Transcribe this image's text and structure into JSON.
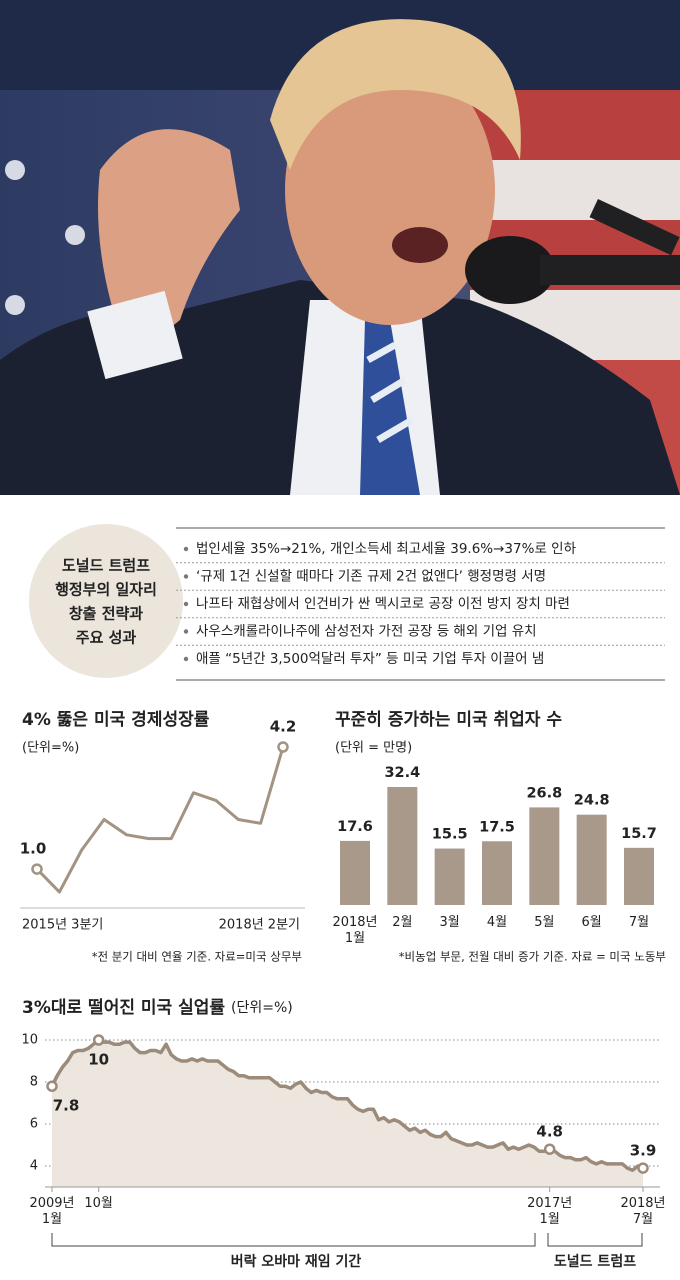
{
  "summary": {
    "title_lines": [
      "도널드 트럼프",
      "행정부의 일자리",
      "창출 전략과",
      "주요 성과"
    ],
    "items": [
      "법인세율 35%→21%, 개인소득세 최고세율 39.6%→37%로 인하",
      "‘규제 1건 신설할 때마다 기존 규제 2건 없앤다’ 행정명령 서명",
      "나프타 재협상에서 인건비가 싼 멕시코로 공장 이전 방지 장치 마련",
      "사우스캐롤라이나주에 삼성전자 가전 공장 등 해외 기업 유치",
      "애플 “5년간 3,500억달러 투자” 등 미국 기업 투자 이끌어 냄"
    ]
  },
  "chart_data": [
    {
      "type": "line",
      "title": "4% 뚫은 미국 경제성장률",
      "subtitle": "(단위=%)",
      "categories": [
        "2015년 3분기",
        null,
        null,
        null,
        null,
        null,
        null,
        null,
        null,
        null,
        null,
        "2018년 2분기"
      ],
      "values": [
        1.0,
        0.4,
        1.5,
        2.3,
        1.9,
        1.8,
        1.8,
        3.0,
        2.8,
        2.3,
        2.2,
        4.2
      ],
      "value_labels": [
        "1.0",
        null,
        null,
        null,
        null,
        null,
        null,
        null,
        null,
        null,
        null,
        "4.2"
      ],
      "color": "#a39382",
      "note": "*전 분기 대비 연율 기준. 자료=미국 상무부"
    },
    {
      "type": "bar",
      "title": "꾸준히 증가하는 미국 취업자 수",
      "subtitle": "(단위 = 만명)",
      "categories": [
        "2018년 1월",
        "2월",
        "3월",
        "4월",
        "5월",
        "6월",
        "7월"
      ],
      "values": [
        17.6,
        32.4,
        15.5,
        17.5,
        26.8,
        24.8,
        15.7
      ],
      "color": "#a8998a",
      "note": "*비농업 부문, 전월 대비 증가 기준. 자료 = 미국 노동부"
    },
    {
      "type": "area",
      "title": "3%대로 떨어진 미국 실업률",
      "subtitle": "(단위=%)",
      "categories": [
        "2009년 1월",
        null,
        null,
        null,
        null,
        null,
        null,
        null,
        null,
        "10월",
        null,
        null,
        null,
        null,
        null,
        null,
        null,
        null,
        null,
        null,
        null,
        null,
        null,
        null,
        null,
        null,
        null,
        null,
        null,
        null,
        null,
        null,
        null,
        null,
        null,
        null,
        null,
        null,
        null,
        null,
        null,
        null,
        null,
        null,
        null,
        null,
        null,
        null,
        null,
        null,
        null,
        null,
        null,
        null,
        null,
        null,
        null,
        null,
        null,
        null,
        null,
        null,
        null,
        null,
        null,
        null,
        null,
        null,
        null,
        null,
        null,
        null,
        null,
        null,
        null,
        null,
        null,
        null,
        null,
        null,
        null,
        null,
        null,
        null,
        null,
        null,
        null,
        null,
        null,
        null,
        null,
        null,
        null,
        null,
        null,
        null,
        "2017년 1월",
        null,
        null,
        null,
        null,
        null,
        null,
        null,
        null,
        null,
        null,
        null,
        null,
        null,
        null,
        null,
        null,
        null,
        "2018년 7월"
      ],
      "values": [
        7.8,
        8.3,
        8.7,
        9.0,
        9.4,
        9.5,
        9.5,
        9.6,
        9.8,
        10,
        9.9,
        9.9,
        9.8,
        9.8,
        9.9,
        9.9,
        9.6,
        9.4,
        9.4,
        9.5,
        9.5,
        9.4,
        9.8,
        9.3,
        9.1,
        9.0,
        9.0,
        9.1,
        9.0,
        9.1,
        9.0,
        9.0,
        9.0,
        8.8,
        8.6,
        8.5,
        8.3,
        8.3,
        8.2,
        8.2,
        8.2,
        8.2,
        8.2,
        8.0,
        7.8,
        7.8,
        7.7,
        7.9,
        8.0,
        7.7,
        7.5,
        7.6,
        7.5,
        7.5,
        7.3,
        7.2,
        7.2,
        7.2,
        6.9,
        6.7,
        6.6,
        6.7,
        6.7,
        6.2,
        6.3,
        6.1,
        6.2,
        6.1,
        5.9,
        5.7,
        5.8,
        5.6,
        5.7,
        5.5,
        5.4,
        5.4,
        5.6,
        5.3,
        5.2,
        5.1,
        5.0,
        5.0,
        5.1,
        5.0,
        4.9,
        4.9,
        5.0,
        5.1,
        4.8,
        4.9,
        4.8,
        4.9,
        5.0,
        4.9,
        4.7,
        4.7,
        4.8,
        4.7,
        4.5,
        4.4,
        4.4,
        4.3,
        4.3,
        4.4,
        4.2,
        4.1,
        4.2,
        4.1,
        4.1,
        4.1,
        4.1,
        3.9,
        3.8,
        4.0,
        3.9
      ],
      "value_labels": [
        "7.8",
        null,
        null,
        null,
        null,
        null,
        null,
        null,
        null,
        "10",
        null,
        null,
        null,
        null,
        null,
        null,
        null,
        null,
        null,
        null,
        null,
        null,
        null,
        null,
        null,
        null,
        null,
        null,
        null,
        null,
        null,
        null,
        null,
        null,
        null,
        null,
        null,
        null,
        null,
        null,
        null,
        null,
        null,
        null,
        null,
        null,
        null,
        null,
        null,
        null,
        null,
        null,
        null,
        null,
        null,
        null,
        null,
        null,
        null,
        null,
        null,
        null,
        null,
        null,
        null,
        null,
        null,
        null,
        null,
        null,
        null,
        null,
        null,
        null,
        null,
        null,
        null,
        null,
        null,
        null,
        null,
        null,
        null,
        null,
        null,
        null,
        null,
        null,
        null,
        null,
        null,
        null,
        null,
        null,
        null,
        null,
        "4.8",
        null,
        null,
        null,
        null,
        null,
        null,
        null,
        null,
        null,
        null,
        null,
        null,
        null,
        null,
        null,
        null,
        null,
        "3.9"
      ],
      "ylim": [
        3,
        10.5
      ],
      "yticks": [
        4,
        6,
        8,
        10
      ],
      "grid": true,
      "color": "#9c8b7a",
      "fill": "#ece6de",
      "periods": [
        "버락 오바마 재임 기간",
        "도널드 트럼프"
      ]
    }
  ]
}
